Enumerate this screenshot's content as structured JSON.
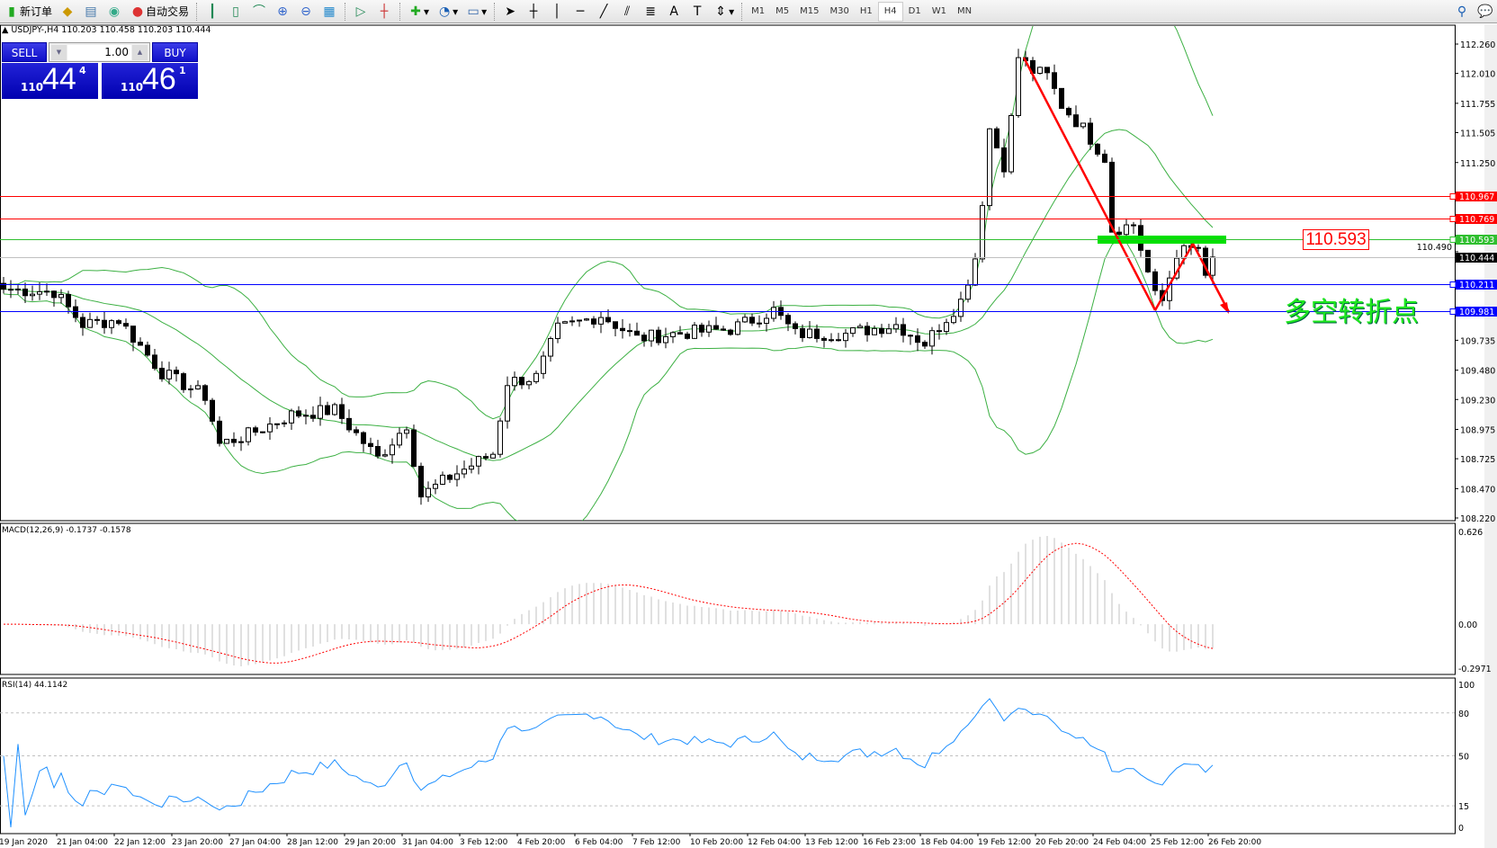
{
  "toolbar": {
    "new_order": "新订单",
    "auto_trading": "自动交易",
    "timeframes": [
      "M1",
      "M5",
      "M15",
      "M30",
      "H1",
      "H4",
      "D1",
      "W1",
      "MN"
    ],
    "active_timeframe": "H4"
  },
  "chart": {
    "symbol_line": "USDJPY-,H4  110.203 110.458 110.203 110.444",
    "one_click": {
      "sell_label": "SELL",
      "buy_label": "BUY",
      "lot": "1.00",
      "sell_prefix": "110",
      "sell_big": "44",
      "sell_sup": "4",
      "buy_prefix": "110",
      "buy_big": "46",
      "buy_sup": "1"
    },
    "annotation_text": "多空转折点",
    "annotation_price": "110.593",
    "colors": {
      "bollinger": "#3cb043",
      "rsi": "#1e90ff",
      "macd_hist": "#c0c0c0",
      "macd_signal": "#ff0000",
      "trend_arrow": "#ff0000",
      "zone": "#00e000"
    }
  },
  "chart_data": {
    "type": "candlestick",
    "symbol": "USDJPY-",
    "timeframe": "H4",
    "price_axis_ticks": [
      "112.260",
      "112.010",
      "111.755",
      "111.505",
      "111.250",
      "110.490",
      "109.735",
      "109.480",
      "109.230",
      "108.975",
      "108.725",
      "108.470",
      "108.220"
    ],
    "ylim": [
      108.22,
      112.26
    ],
    "close_path": [
      [
        0,
        110.17
      ],
      [
        7,
        110.15
      ],
      [
        11,
        109.87
      ],
      [
        16,
        109.91
      ],
      [
        22,
        109.46
      ],
      [
        28,
        109.26
      ],
      [
        30,
        108.85
      ],
      [
        34,
        108.93
      ],
      [
        40,
        109.1
      ],
      [
        46,
        109.14
      ],
      [
        52,
        108.73
      ],
      [
        56,
        109.02
      ],
      [
        58,
        108.41
      ],
      [
        62,
        108.57
      ],
      [
        68,
        108.77
      ],
      [
        70,
        109.38
      ],
      [
        74,
        109.42
      ],
      [
        77,
        109.83
      ],
      [
        83,
        109.95
      ],
      [
        88,
        109.75
      ],
      [
        93,
        109.79
      ],
      [
        101,
        109.83
      ],
      [
        107,
        109.99
      ],
      [
        110,
        109.79
      ],
      [
        117,
        109.79
      ],
      [
        124,
        109.87
      ],
      [
        128,
        109.71
      ],
      [
        133,
        110.07
      ],
      [
        135,
        110.44
      ],
      [
        136,
        110.93
      ],
      [
        137,
        111.54
      ],
      [
        139,
        111.23
      ],
      [
        140,
        111.62
      ],
      [
        141,
        112.15
      ],
      [
        143,
        112.03
      ],
      [
        145,
        111.99
      ],
      [
        147,
        111.74
      ],
      [
        150,
        111.54
      ],
      [
        153,
        111.29
      ],
      [
        154,
        110.68
      ],
      [
        157,
        110.72
      ],
      [
        160,
        110.11
      ],
      [
        161,
        110.07
      ],
      [
        163,
        110.48
      ],
      [
        166,
        110.52
      ],
      [
        167,
        110.24
      ],
      [
        168,
        110.444
      ]
    ],
    "horizontal_lines": [
      {
        "price": "110.967",
        "color": "#ff0000"
      },
      {
        "price": "110.769",
        "color": "#ff0000"
      },
      {
        "price": "110.593",
        "color": "#2fbf2f"
      },
      {
        "price": "110.444",
        "color": "#000000",
        "line": "#c0c0c0"
      },
      {
        "price": "110.211",
        "color": "#0000ff"
      },
      {
        "price": "109.981",
        "color": "#0000ff"
      }
    ],
    "time_labels": [
      "19 Jan 2020",
      "21 Jan 04:00",
      "22 Jan 12:00",
      "23 Jan 20:00",
      "27 Jan 04:00",
      "28 Jan 12:00",
      "29 Jan 20:00",
      "31 Jan 04:00",
      "3 Feb 12:00",
      "4 Feb 20:00",
      "6 Feb 04:00",
      "7 Feb 12:00",
      "10 Feb 20:00",
      "12 Feb 04:00",
      "13 Feb 12:00",
      "16 Feb 23:00",
      "18 Feb 04:00",
      "19 Feb 12:00",
      "20 Feb 20:00",
      "24 Feb 04:00",
      "25 Feb 12:00",
      "26 Feb 20:00"
    ],
    "macd": {
      "label": "MACD(12,26,9) -0.1737 -0.1578",
      "ticks": [
        "0.626",
        "0.00",
        "-0.2971"
      ],
      "ylim": [
        -0.2971,
        0.626
      ]
    },
    "rsi": {
      "label": "RSI(14) 44.1142",
      "ticks": [
        "100",
        "80",
        "50",
        "15",
        "0"
      ],
      "levels": [
        80,
        50,
        15
      ]
    }
  }
}
